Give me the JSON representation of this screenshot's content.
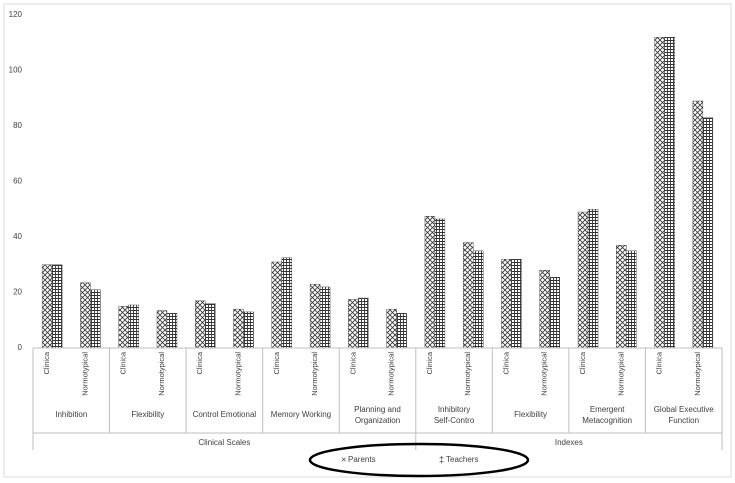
{
  "chart_data": {
    "type": "bar",
    "title": "",
    "xlabel": "",
    "ylabel": "",
    "ylim": [
      0,
      120
    ],
    "yticks": [
      0,
      20,
      40,
      60,
      80,
      100,
      120
    ],
    "grid": false,
    "legend_position": "bottom-center",
    "pattern_parents": "cross-hatch",
    "pattern_teachers": "grid-hatch",
    "groups": [
      {
        "label": "Clinical Scales",
        "scales": [
          {
            "name": "Inhibition",
            "subs": [
              "Clinica",
              "Normotypical"
            ]
          },
          {
            "name": "Flexibility",
            "subs": [
              "Clinica",
              "Normotypical"
            ]
          },
          {
            "name": "Control Emotional",
            "subs": [
              "Clinica",
              "Normotypical"
            ]
          },
          {
            "name": "Memory Working",
            "subs": [
              "Clinica",
              "Normotypical"
            ]
          },
          {
            "name": "Planning and Organization",
            "subs": [
              "Clinica",
              "Normotypical"
            ]
          }
        ]
      },
      {
        "label": "Indexes",
        "scales": [
          {
            "name": "Inhibitory Self-Contro",
            "subs": [
              "Clinica",
              "Normotypical"
            ]
          },
          {
            "name": "Flexibility",
            "subs": [
              "Clinica",
              "Normotypical"
            ]
          },
          {
            "name": "Emergent Metacognition",
            "subs": [
              "Clinica",
              "Normotypical"
            ]
          },
          {
            "name": "Global Executive Function",
            "subs": [
              "Clinica",
              "Normotypical"
            ]
          }
        ]
      }
    ],
    "series": [
      {
        "name": "Parents",
        "values": [
          30,
          23.5,
          15,
          13.5,
          17,
          14,
          31,
          23,
          17.5,
          14,
          47.5,
          38,
          32,
          28,
          49,
          37,
          112,
          89
        ]
      },
      {
        "name": "Teachers",
        "values": [
          30,
          21,
          15.5,
          12.5,
          16,
          13,
          32.5,
          22,
          18,
          12.5,
          46.5,
          35,
          32,
          25.5,
          50,
          35,
          112,
          83
        ]
      }
    ]
  }
}
